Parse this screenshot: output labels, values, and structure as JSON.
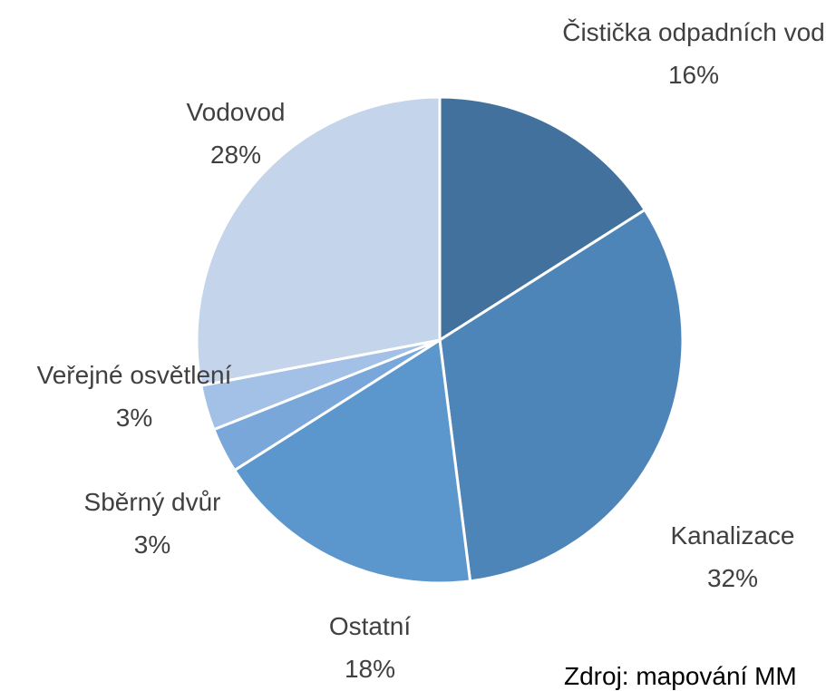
{
  "chart_data": {
    "type": "pie",
    "categories": [
      "Čistička odpadních vod",
      "Kanalizace",
      "Ostatní",
      "Sběrný dvůr",
      "Veřejné osvětlení",
      "Vodovod"
    ],
    "values": [
      16,
      32,
      18,
      3,
      3,
      28
    ],
    "value_labels": [
      "16%",
      "32%",
      "18%",
      "3%",
      "3%",
      "28%"
    ],
    "colors": [
      "#41719c",
      "#4e85b8",
      "#5b97cc",
      "#7aa7d9",
      "#a3c0e6",
      "#c3d4eb"
    ],
    "source": "Zdroj: mapování MM"
  }
}
